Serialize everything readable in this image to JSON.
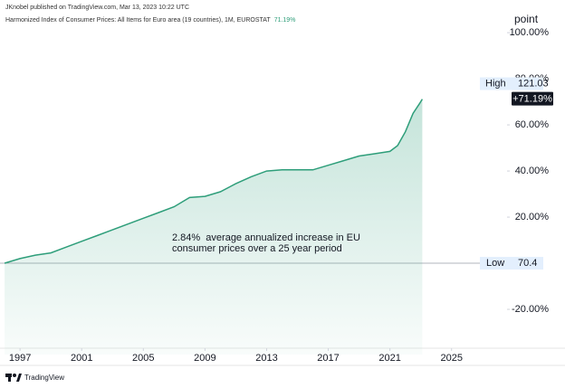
{
  "chart_data": {
    "type": "area",
    "source": "JKnobel published on TradingView.com, Mar 13, 2023 10:22 UTC",
    "title": "Harmonized Index of Consumer Prices: All Items for Euro area (19 countries), 1M, EUROSTAT",
    "title_value": "71.19%",
    "y_axis_label": "point",
    "color": "#2e9e7a",
    "x": [
      1996.0,
      1997,
      1998,
      1999,
      2000,
      2001,
      2002,
      2003,
      2004,
      2005,
      2006,
      2007,
      2008,
      2009,
      2010,
      2011,
      2012,
      2013,
      2014,
      2015,
      2016,
      2017,
      2018,
      2019,
      2020,
      2021,
      2021.5,
      2022,
      2022.5,
      2022.9,
      2023.1
    ],
    "values": [
      0,
      2,
      3.5,
      4.5,
      7,
      9.5,
      12,
      14.5,
      17,
      19.5,
      22,
      24.5,
      28.5,
      29,
      31,
      34.5,
      37.5,
      40,
      40.5,
      40.5,
      40.5,
      42.5,
      44.5,
      46.5,
      47.5,
      48.5,
      51,
      57,
      65,
      69,
      71.19
    ],
    "xlim": [
      1995.7,
      2028.6
    ],
    "ylim": [
      -39.6,
      102.4
    ],
    "xticks": [
      1997,
      2001,
      2005,
      2009,
      2013,
      2017,
      2021,
      2025
    ],
    "yticks": [
      {
        "value": 100,
        "label": "100.00%"
      },
      {
        "value": 80,
        "label": "80.00%"
      },
      {
        "value": 60,
        "label": "60.00%"
      },
      {
        "value": 40,
        "label": "40.00%"
      },
      {
        "value": 20,
        "label": "20.00%"
      },
      {
        "value": -20,
        "label": "-20.00%"
      }
    ],
    "annotation": [
      "2.84%  average annualized increase in EU",
      "consumer prices over a 25 year period"
    ],
    "high": {
      "label": "High",
      "value": 121.03
    },
    "change_label": "+71.19%",
    "low": {
      "label": "Low",
      "value": 70.4
    },
    "brand": "TradingView"
  }
}
